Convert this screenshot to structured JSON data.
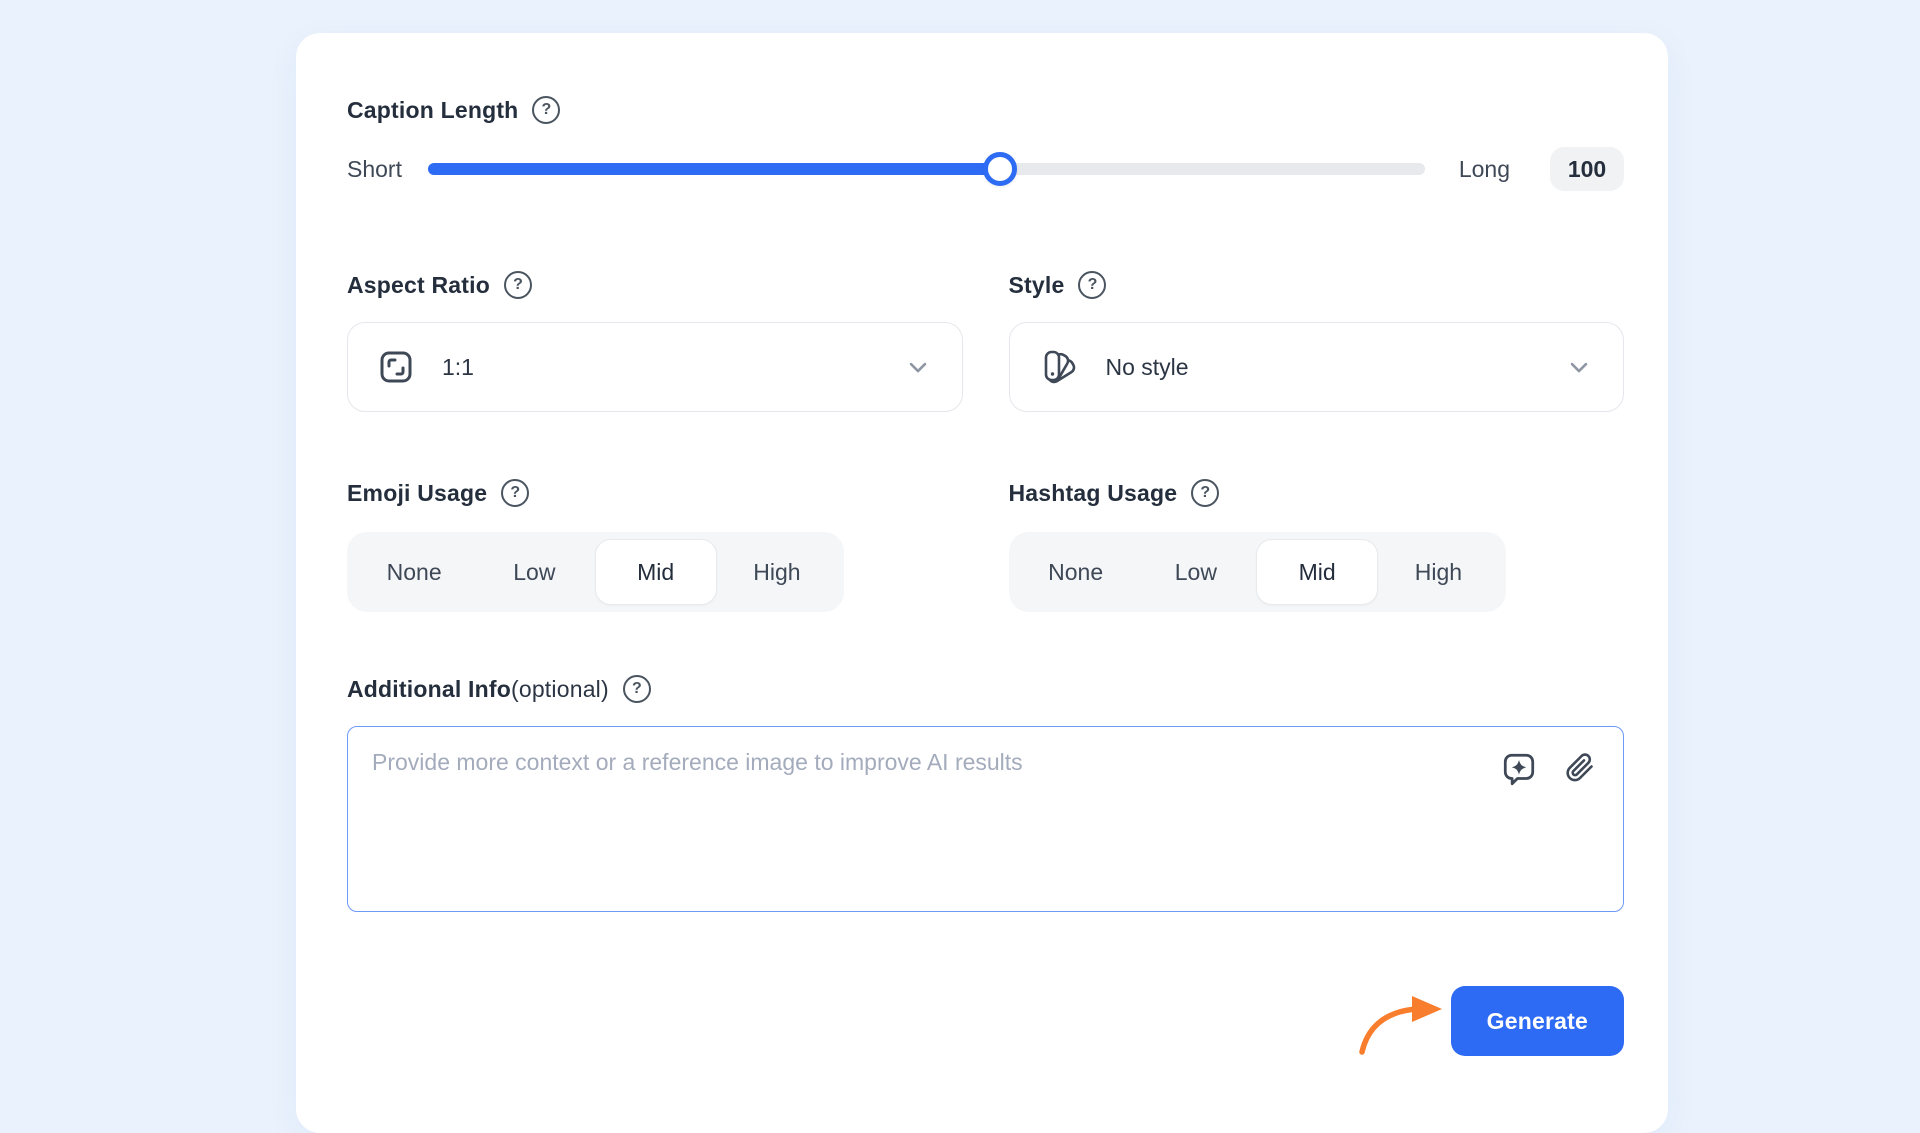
{
  "colors": {
    "page_background": "#EAF2FD",
    "card_background": "#FFFFFF",
    "accent_blue": "#2E6BF4",
    "slider_track_gray": "#E7E9EC",
    "textarea_border_blue": "#6D9AF6",
    "arrow_orange": "#F87D2C"
  },
  "icons": {
    "help_glyph": "?"
  },
  "caption_length": {
    "label": "Caption Length",
    "min_label": "Short",
    "max_label": "Long",
    "value": "100",
    "percent": 57.4
  },
  "aspect_ratio": {
    "label": "Aspect Ratio",
    "selected_value": "1:1"
  },
  "style": {
    "label": "Style",
    "selected_value": "No style"
  },
  "emoji_usage": {
    "label": "Emoji Usage",
    "options": [
      "None",
      "Low",
      "Mid",
      "High"
    ],
    "selected": "Mid"
  },
  "hashtag_usage": {
    "label": "Hashtag Usage",
    "options": [
      "None",
      "Low",
      "Mid",
      "High"
    ],
    "selected": "Mid"
  },
  "additional_info": {
    "label": "Additional Info",
    "label_suffix": "(optional)",
    "placeholder": "Provide more context or a reference image to improve AI results",
    "value": ""
  },
  "footer": {
    "generate_label": "Generate"
  }
}
